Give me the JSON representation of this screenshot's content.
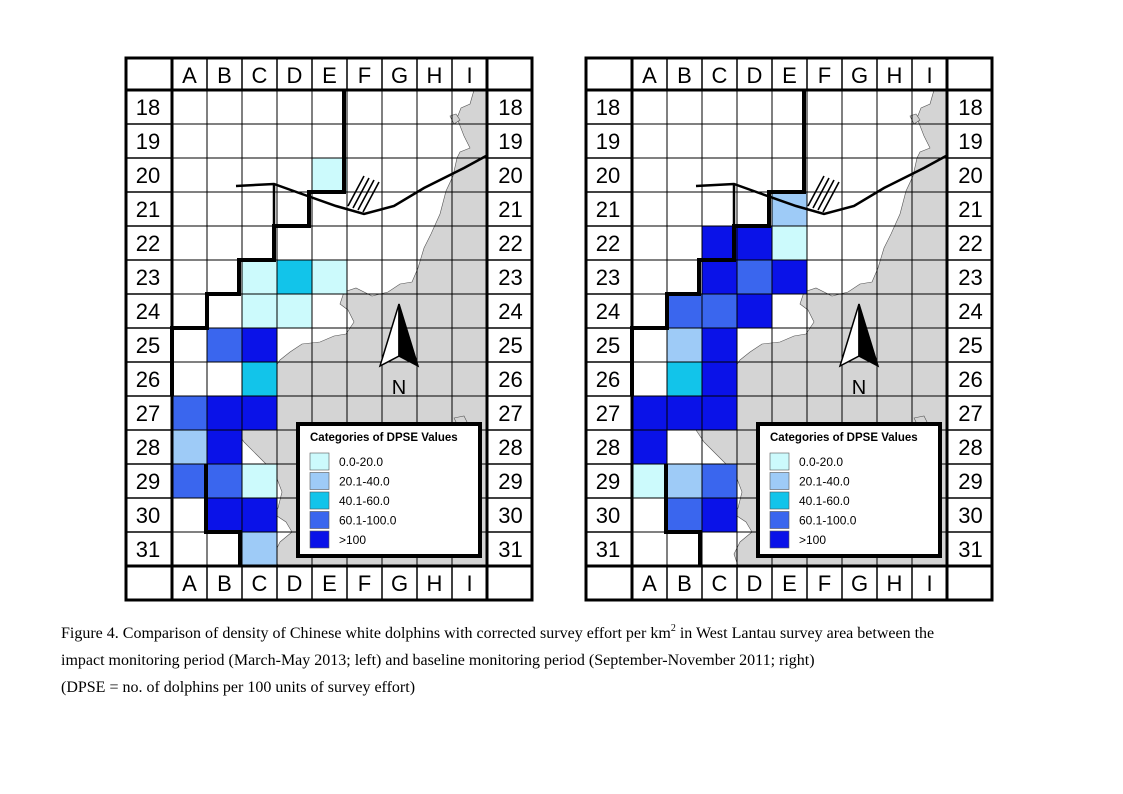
{
  "grid": {
    "columns": [
      "A",
      "B",
      "C",
      "D",
      "E",
      "F",
      "G",
      "H",
      "I"
    ],
    "rows": [
      "18",
      "19",
      "20",
      "21",
      "22",
      "23",
      "24",
      "25",
      "26",
      "27",
      "28",
      "29",
      "30",
      "31"
    ]
  },
  "categories": [
    {
      "key": "c1",
      "label": "0.0-20.0",
      "color": "#ccfafc"
    },
    {
      "key": "c2",
      "label": "20.1-40.0",
      "color": "#9ecbf7"
    },
    {
      "key": "c3",
      "label": "40.1-60.0",
      "color": "#12c4ea"
    },
    {
      "key": "c4",
      "label": "60.1-100.0",
      "color": "#3a66ee"
    },
    {
      "key": "c5",
      "label": ">100",
      "color": "#0a12e8"
    }
  ],
  "maps": [
    {
      "id": "left",
      "period_note": "impact monitoring period (March-May 2013; left)",
      "legend_title": "Categories of DPSE Values",
      "north_label": "N",
      "cells": [
        {
          "col": "E",
          "row": "20",
          "cat": "c1"
        },
        {
          "col": "C",
          "row": "23",
          "cat": "c1"
        },
        {
          "col": "D",
          "row": "23",
          "cat": "c3"
        },
        {
          "col": "E",
          "row": "23",
          "cat": "c1"
        },
        {
          "col": "C",
          "row": "24",
          "cat": "c1"
        },
        {
          "col": "D",
          "row": "24",
          "cat": "c1"
        },
        {
          "col": "B",
          "row": "25",
          "cat": "c4"
        },
        {
          "col": "C",
          "row": "25",
          "cat": "c5"
        },
        {
          "col": "C",
          "row": "26",
          "cat": "c3"
        },
        {
          "col": "A",
          "row": "27",
          "cat": "c4"
        },
        {
          "col": "B",
          "row": "27",
          "cat": "c5"
        },
        {
          "col": "C",
          "row": "27",
          "cat": "c5"
        },
        {
          "col": "A",
          "row": "28",
          "cat": "c2"
        },
        {
          "col": "B",
          "row": "28",
          "cat": "c5"
        },
        {
          "col": "A",
          "row": "29",
          "cat": "c4"
        },
        {
          "col": "B",
          "row": "29",
          "cat": "c4"
        },
        {
          "col": "C",
          "row": "29",
          "cat": "c1"
        },
        {
          "col": "B",
          "row": "30",
          "cat": "c5"
        },
        {
          "col": "C",
          "row": "30",
          "cat": "c5"
        },
        {
          "col": "C",
          "row": "31",
          "cat": "c2"
        }
      ]
    },
    {
      "id": "right",
      "period_note": "baseline monitoring period (September-November 2011; right)",
      "legend_title": "Categories of DPSE Values",
      "north_label": "N",
      "cells": [
        {
          "col": "E",
          "row": "21",
          "cat": "c2"
        },
        {
          "col": "C",
          "row": "22",
          "cat": "c5"
        },
        {
          "col": "D",
          "row": "22",
          "cat": "c5"
        },
        {
          "col": "E",
          "row": "22",
          "cat": "c1"
        },
        {
          "col": "C",
          "row": "23",
          "cat": "c5"
        },
        {
          "col": "D",
          "row": "23",
          "cat": "c4"
        },
        {
          "col": "E",
          "row": "23",
          "cat": "c5"
        },
        {
          "col": "B",
          "row": "24",
          "cat": "c4"
        },
        {
          "col": "C",
          "row": "24",
          "cat": "c4"
        },
        {
          "col": "D",
          "row": "24",
          "cat": "c5"
        },
        {
          "col": "B",
          "row": "25",
          "cat": "c2"
        },
        {
          "col": "C",
          "row": "25",
          "cat": "c5"
        },
        {
          "col": "B",
          "row": "26",
          "cat": "c3"
        },
        {
          "col": "C",
          "row": "26",
          "cat": "c5"
        },
        {
          "col": "A",
          "row": "27",
          "cat": "c5"
        },
        {
          "col": "B",
          "row": "27",
          "cat": "c5"
        },
        {
          "col": "C",
          "row": "27",
          "cat": "c5"
        },
        {
          "col": "A",
          "row": "28",
          "cat": "c5"
        },
        {
          "col": "A",
          "row": "29",
          "cat": "c1"
        },
        {
          "col": "B",
          "row": "29",
          "cat": "c2"
        },
        {
          "col": "C",
          "row": "29",
          "cat": "c4"
        },
        {
          "col": "B",
          "row": "30",
          "cat": "c4"
        },
        {
          "col": "C",
          "row": "30",
          "cat": "c5"
        }
      ]
    }
  ],
  "caption": {
    "line1_before_sup": "Figure 4.  Comparison of density of Chinese white dolphins with corrected survey effort per km",
    "sup": "2",
    "line1_after_sup": " in West Lantau survey area between the",
    "line2": "impact monitoring period (March-May 2013; left) and baseline monitoring period (September-November 2011; right)",
    "line3": "(DPSE = no. of dolphins per 100 units of survey effort)"
  },
  "colors": {
    "land": "#d4d4d4",
    "grid_line": "#000000",
    "boundary": "#000000"
  }
}
